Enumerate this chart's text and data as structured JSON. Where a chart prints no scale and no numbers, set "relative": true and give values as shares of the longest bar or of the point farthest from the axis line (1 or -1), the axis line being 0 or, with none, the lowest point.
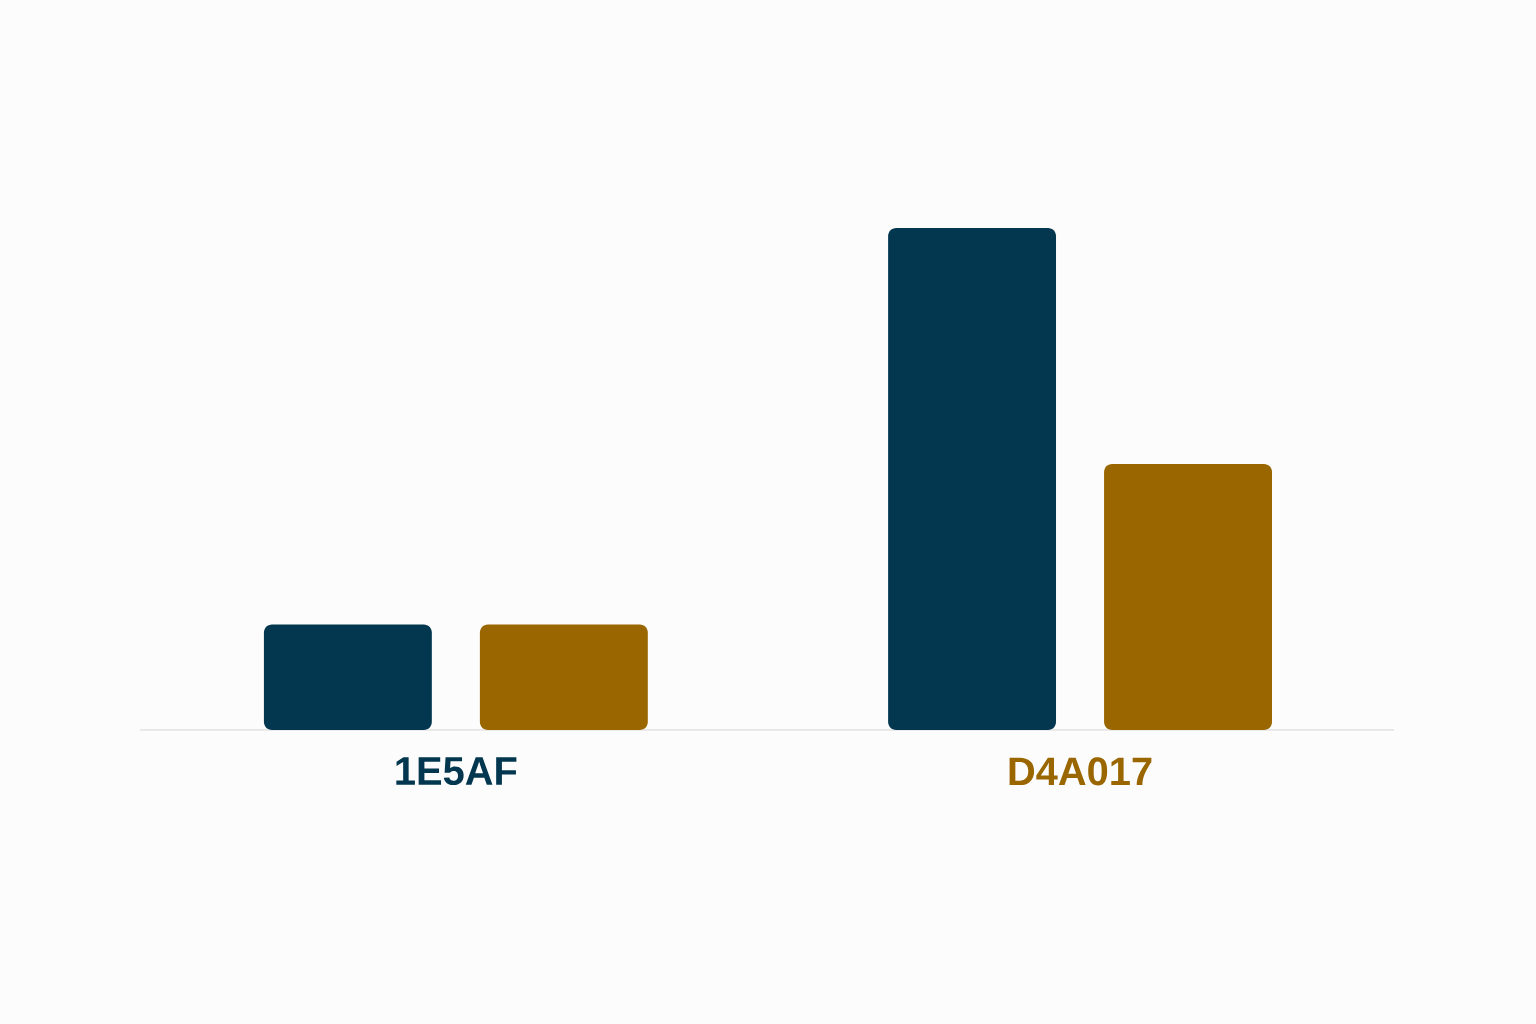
{
  "chart_data": {
    "type": "bar",
    "relative": true,
    "categories": [
      "1E5AF",
      "D4A017"
    ],
    "series": [
      {
        "color": "#03364f",
        "values": [
          0.21,
          1
        ]
      },
      {
        "color": "#996600",
        "values": [
          0.21,
          0.53
        ]
      }
    ]
  }
}
